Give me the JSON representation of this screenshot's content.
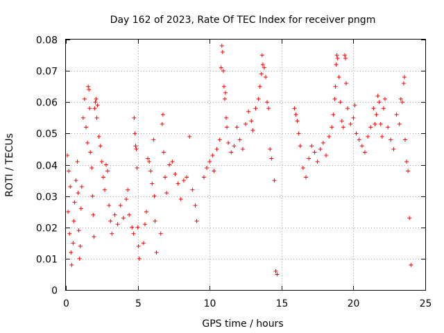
{
  "chart_data": {
    "type": "scatter",
    "title": "Day 162 of 2023, Rate Of TEC Index for receiver pngm",
    "xlabel": "GPS time / hours",
    "ylabel": "ROTI / TECUs",
    "xlim": [
      0,
      25
    ],
    "ylim": [
      0,
      0.08
    ],
    "xticks": [
      0,
      5,
      10,
      15,
      20,
      25
    ],
    "xtick_labels": [
      "0",
      "5",
      "10",
      "15",
      "20",
      "25"
    ],
    "yticks": [
      0,
      0.01,
      0.02,
      0.03,
      0.04,
      0.05,
      0.06,
      0.07,
      0.08
    ],
    "ytick_labels": [
      "0",
      "0.01",
      "0.02",
      "0.03",
      "0.04",
      "0.05",
      "0.06",
      "0.07",
      "0.08"
    ],
    "grid": true,
    "marker": "+",
    "marker_color": "#ff0000",
    "series": [
      {
        "name": "ROTI",
        "points": [
          [
            0.1,
            0.043
          ],
          [
            0.2,
            0.038
          ],
          [
            0.3,
            0.033
          ],
          [
            0.15,
            0.025
          ],
          [
            0.25,
            0.018
          ],
          [
            0.35,
            0.012
          ],
          [
            0.4,
            0.008
          ],
          [
            0.5,
            0.015
          ],
          [
            0.55,
            0.022
          ],
          [
            0.6,
            0.028
          ],
          [
            0.7,
            0.035
          ],
          [
            0.8,
            0.041
          ],
          [
            0.85,
            0.031
          ],
          [
            0.9,
            0.019
          ],
          [
            0.95,
            0.01
          ],
          [
            1.0,
            0.014
          ],
          [
            1.05,
            0.026
          ],
          [
            1.1,
            0.033
          ],
          [
            1.2,
            0.055
          ],
          [
            1.3,
            0.061
          ],
          [
            1.4,
            0.052
          ],
          [
            1.5,
            0.047
          ],
          [
            1.55,
            0.065
          ],
          [
            1.6,
            0.064
          ],
          [
            1.65,
            0.058
          ],
          [
            1.7,
            0.044
          ],
          [
            1.8,
            0.039
          ],
          [
            1.85,
            0.03
          ],
          [
            1.9,
            0.024
          ],
          [
            1.95,
            0.017
          ],
          [
            2.0,
            0.058
          ],
          [
            2.05,
            0.06
          ],
          [
            2.1,
            0.061
          ],
          [
            2.15,
            0.055
          ],
          [
            2.2,
            0.059
          ],
          [
            2.3,
            0.049
          ],
          [
            2.4,
            0.046
          ],
          [
            2.5,
            0.041
          ],
          [
            2.6,
            0.036
          ],
          [
            2.7,
            0.032
          ],
          [
            2.8,
            0.04
          ],
          [
            2.9,
            0.038
          ],
          [
            3.0,
            0.027
          ],
          [
            3.1,
            0.022
          ],
          [
            3.2,
            0.018
          ],
          [
            3.4,
            0.024
          ],
          [
            3.6,
            0.021
          ],
          [
            3.8,
            0.027
          ],
          [
            4.0,
            0.023
          ],
          [
            4.2,
            0.029
          ],
          [
            4.3,
            0.032
          ],
          [
            4.4,
            0.024
          ],
          [
            4.6,
            0.02
          ],
          [
            4.7,
            0.018
          ],
          [
            4.75,
            0.055
          ],
          [
            4.8,
            0.05
          ],
          [
            4.85,
            0.046
          ],
          [
            4.9,
            0.045
          ],
          [
            4.95,
            0.039
          ],
          [
            5.0,
            0.02
          ],
          [
            5.05,
            0.014
          ],
          [
            5.1,
            0.01
          ],
          [
            5.4,
            0.015
          ],
          [
            5.5,
            0.021
          ],
          [
            5.6,
            0.025
          ],
          [
            5.7,
            0.042
          ],
          [
            5.8,
            0.041
          ],
          [
            5.9,
            0.038
          ],
          [
            6.0,
            0.034
          ],
          [
            6.1,
            0.048
          ],
          [
            6.15,
            0.03
          ],
          [
            6.2,
            0.022
          ],
          [
            6.3,
            0.012
          ],
          [
            6.6,
            0.018
          ],
          [
            6.7,
            0.053
          ],
          [
            6.75,
            0.056
          ],
          [
            6.8,
            0.044
          ],
          [
            6.9,
            0.036
          ],
          [
            7.0,
            0.031
          ],
          [
            7.2,
            0.04
          ],
          [
            7.4,
            0.041
          ],
          [
            7.6,
            0.037
          ],
          [
            7.8,
            0.034
          ],
          [
            8.0,
            0.029
          ],
          [
            8.2,
            0.035
          ],
          [
            8.4,
            0.036
          ],
          [
            8.6,
            0.049
          ],
          [
            8.8,
            0.032
          ],
          [
            9.0,
            0.027
          ],
          [
            9.1,
            0.022
          ],
          [
            9.6,
            0.036
          ],
          [
            9.8,
            0.039
          ],
          [
            10.0,
            0.041
          ],
          [
            10.2,
            0.043
          ],
          [
            10.3,
            0.038
          ],
          [
            10.5,
            0.045
          ],
          [
            10.7,
            0.048
          ],
          [
            10.8,
            0.071
          ],
          [
            10.85,
            0.078
          ],
          [
            10.9,
            0.076
          ],
          [
            10.95,
            0.07
          ],
          [
            11.0,
            0.065
          ],
          [
            11.05,
            0.061
          ],
          [
            11.1,
            0.063
          ],
          [
            11.15,
            0.055
          ],
          [
            11.2,
            0.052
          ],
          [
            11.3,
            0.047
          ],
          [
            11.5,
            0.044
          ],
          [
            11.7,
            0.046
          ],
          [
            11.9,
            0.052
          ],
          [
            12.1,
            0.048
          ],
          [
            12.3,
            0.045
          ],
          [
            12.5,
            0.053
          ],
          [
            12.7,
            0.057
          ],
          [
            12.9,
            0.054
          ],
          [
            13.0,
            0.051
          ],
          [
            13.2,
            0.058
          ],
          [
            13.4,
            0.061
          ],
          [
            13.5,
            0.065
          ],
          [
            13.6,
            0.069
          ],
          [
            13.65,
            0.075
          ],
          [
            13.7,
            0.072
          ],
          [
            13.8,
            0.071
          ],
          [
            13.9,
            0.068
          ],
          [
            14.0,
            0.06
          ],
          [
            14.1,
            0.058
          ],
          [
            14.2,
            0.045
          ],
          [
            14.3,
            0.042
          ],
          [
            14.5,
            0.035
          ],
          [
            14.6,
            0.006
          ],
          [
            14.7,
            0.005
          ],
          [
            15.9,
            0.058
          ],
          [
            16.0,
            0.056
          ],
          [
            16.1,
            0.054
          ],
          [
            16.2,
            0.05
          ],
          [
            16.3,
            0.046
          ],
          [
            16.5,
            0.039
          ],
          [
            16.7,
            0.036
          ],
          [
            16.9,
            0.042
          ],
          [
            17.1,
            0.046
          ],
          [
            17.3,
            0.044
          ],
          [
            17.5,
            0.041
          ],
          [
            17.7,
            0.045
          ],
          [
            17.9,
            0.047
          ],
          [
            18.1,
            0.043
          ],
          [
            18.3,
            0.049
          ],
          [
            18.5,
            0.052
          ],
          [
            18.6,
            0.056
          ],
          [
            18.7,
            0.061
          ],
          [
            18.75,
            0.065
          ],
          [
            18.8,
            0.072
          ],
          [
            18.85,
            0.075
          ],
          [
            18.9,
            0.074
          ],
          [
            19.0,
            0.068
          ],
          [
            19.1,
            0.06
          ],
          [
            19.2,
            0.054
          ],
          [
            19.3,
            0.052
          ],
          [
            19.4,
            0.075
          ],
          [
            19.45,
            0.074
          ],
          [
            19.5,
            0.066
          ],
          [
            19.6,
            0.058
          ],
          [
            19.8,
            0.053
          ],
          [
            20.0,
            0.055
          ],
          [
            20.1,
            0.059
          ],
          [
            20.2,
            0.05
          ],
          [
            20.4,
            0.048
          ],
          [
            20.6,
            0.046
          ],
          [
            20.8,
            0.044
          ],
          [
            21.0,
            0.049
          ],
          [
            21.2,
            0.052
          ],
          [
            21.4,
            0.058
          ],
          [
            21.5,
            0.053
          ],
          [
            21.6,
            0.056
          ],
          [
            21.7,
            0.062
          ],
          [
            21.8,
            0.06
          ],
          [
            21.9,
            0.053
          ],
          [
            22.0,
            0.049
          ],
          [
            22.1,
            0.058
          ],
          [
            22.2,
            0.061
          ],
          [
            22.4,
            0.052
          ],
          [
            22.6,
            0.048
          ],
          [
            22.8,
            0.045
          ],
          [
            23.0,
            0.056
          ],
          [
            23.2,
            0.053
          ],
          [
            23.3,
            0.061
          ],
          [
            23.4,
            0.06
          ],
          [
            23.5,
            0.066
          ],
          [
            23.55,
            0.068
          ],
          [
            23.6,
            0.048
          ],
          [
            23.7,
            0.041
          ],
          [
            23.8,
            0.038
          ],
          [
            23.9,
            0.023
          ],
          [
            24.0,
            0.008
          ]
        ]
      }
    ]
  }
}
